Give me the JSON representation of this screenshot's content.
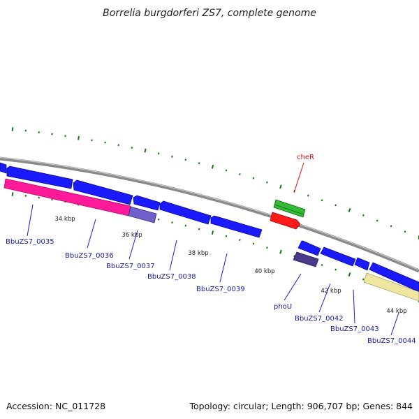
{
  "title": "Borrelia burgdorferi ZS7, complete genome",
  "footer": {
    "accession": "Accession: NC_011728",
    "summary": "Topology: circular; Length: 906,707 bp; Genes: 844"
  },
  "scale_labels": [
    "34 kbp",
    "36 kbp",
    "38 kbp",
    "40 kbp",
    "42 kbp",
    "44 kbp"
  ],
  "gene_labels": {
    "cheR": "cheR",
    "g0035": "BbuZS7_0035",
    "g0036": "BbuZS7_0036",
    "g0037": "BbuZS7_0037",
    "g0038": "BbuZS7_0038",
    "g0039": "BbuZS7_0039",
    "phoU": "phoU",
    "g0042": "BbuZS7_0042",
    "g0043": "BbuZS7_0043",
    "g0044": "BbuZS7_0044"
  },
  "colors": {
    "backbone": "#8a8a8a",
    "cds_blue": "#1a1aff",
    "gene_label": "#1a1a9a",
    "cheR_label": "#cc1111",
    "cheR_leader": "#cc1111",
    "green_feature": "#33bb33",
    "red_feature": "#ff1a1a",
    "magenta_feature": "#ff1a9a",
    "lavender_feature": "#7060cc",
    "darkpurple_feature": "#4a3a8a",
    "yellow_feature": "#f0e6a0",
    "gc_dots": "#117711"
  }
}
